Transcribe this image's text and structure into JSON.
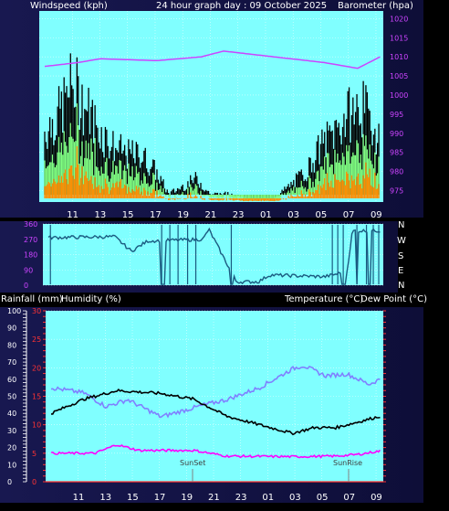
{
  "panel_top": {
    "title_left": "Windspeed (kph)",
    "title_center": "24 hour graph day : 09 October 2025",
    "title_right": "Barometer (hpa)"
  },
  "panel_mid": {
    "compass": [
      "N",
      "W",
      "S",
      "E",
      "N"
    ]
  },
  "panel_bottom": {
    "label_rain": "Rainfall (mm)",
    "label_hum": "Humidity (%)",
    "label_temp": "Temperature (°C)",
    "label_dew": "Dew Point (°C)",
    "sunset": "SunSet",
    "sunrise": "SunRise"
  },
  "colors": {
    "plot_bg": "#80ffff",
    "frame": "#101040",
    "wind_gust": "#000000",
    "wind_avg": "#80ff80",
    "wind_low": "#ff8c00",
    "barometer": "#cc44ff",
    "direction": "#1a5a80",
    "temperature": "#000000",
    "dewpoint": "#ff00ff",
    "humidity": "#8080ff"
  },
  "chart_data": [
    {
      "type": "line",
      "x_ticks": [
        "11",
        "13",
        "15",
        "17",
        "19",
        "21",
        "23",
        "01",
        "03",
        "05",
        "07",
        "09"
      ],
      "y_left": {
        "ticks": [],
        "ylim": [
          0,
          100
        ]
      },
      "y_right": {
        "ticks": [
          975,
          980,
          985,
          990,
          995,
          1000,
          1005,
          1010,
          1015,
          1020
        ],
        "ylim": [
          972,
          1022
        ]
      },
      "barometer_anchors": [
        [
          0,
          1007.5
        ],
        [
          3,
          1008.5
        ],
        [
          5,
          1009.5
        ],
        [
          10,
          1009.0
        ],
        [
          14,
          1010.0
        ],
        [
          16,
          1011.5
        ],
        [
          19,
          1010.5
        ],
        [
          22,
          1009.5
        ],
        [
          25,
          1008.5
        ],
        [
          27,
          1007.5
        ],
        [
          28,
          1007.0
        ],
        [
          30,
          1010.0
        ]
      ],
      "series": [
        {
          "name": "Windspeed (kph)",
          "style": "gust-band"
        },
        {
          "name": "Barometer (hpa)",
          "style": "line"
        }
      ]
    },
    {
      "type": "scatter",
      "y_ticks": [
        0,
        90,
        180,
        270,
        360
      ],
      "ylim": [
        0,
        360
      ],
      "direction_anchors": [
        [
          0,
          280
        ],
        [
          6,
          285
        ],
        [
          7.5,
          200
        ],
        [
          9,
          260
        ],
        [
          14,
          270
        ],
        [
          14.5,
          330
        ],
        [
          17,
          20
        ],
        [
          19,
          20
        ],
        [
          20,
          60
        ],
        [
          25,
          50
        ],
        [
          27,
          80
        ],
        [
          27.5,
          320
        ],
        [
          30,
          320
        ]
      ]
    },
    {
      "type": "line",
      "y_left_humidity": {
        "ticks": [
          0,
          10,
          20,
          30,
          40,
          50,
          60,
          70,
          80,
          90,
          100
        ],
        "ylim": [
          0,
          100
        ]
      },
      "y_temp": {
        "ticks": [
          0,
          5,
          10,
          15,
          20,
          25,
          30
        ],
        "ylim": [
          0,
          30
        ]
      },
      "series": [
        {
          "name": "Humidity (%)",
          "anchors": [
            [
              0,
              55
            ],
            [
              3,
              52
            ],
            [
              5,
              44
            ],
            [
              7,
              48
            ],
            [
              10,
              38
            ],
            [
              14,
              45
            ],
            [
              16,
              48
            ],
            [
              19,
              55
            ],
            [
              22,
              66
            ],
            [
              23,
              68
            ],
            [
              25,
              62
            ],
            [
              27,
              63
            ],
            [
              29,
              57
            ],
            [
              30,
              60
            ]
          ]
        },
        {
          "name": "Temperature (°C)",
          "anchors": [
            [
              0,
              12.0
            ],
            [
              3,
              14.5
            ],
            [
              6,
              16.0
            ],
            [
              10,
              15.5
            ],
            [
              13,
              14.5
            ],
            [
              16,
              11.5
            ],
            [
              19,
              10.0
            ],
            [
              22,
              8.5
            ],
            [
              24,
              9.5
            ],
            [
              26,
              9.5
            ],
            [
              28,
              10.5
            ],
            [
              30,
              11.5
            ]
          ]
        },
        {
          "name": "Dew Point (°C)",
          "anchors": [
            [
              0,
              5.0
            ],
            [
              4,
              5.0
            ],
            [
              6,
              6.5
            ],
            [
              8,
              5.5
            ],
            [
              10,
              5.5
            ],
            [
              13,
              5.5
            ],
            [
              16,
              4.5
            ],
            [
              22,
              4.4
            ],
            [
              26,
              4.5
            ],
            [
              28,
              4.8
            ],
            [
              30,
              5.4
            ]
          ]
        }
      ]
    }
  ]
}
